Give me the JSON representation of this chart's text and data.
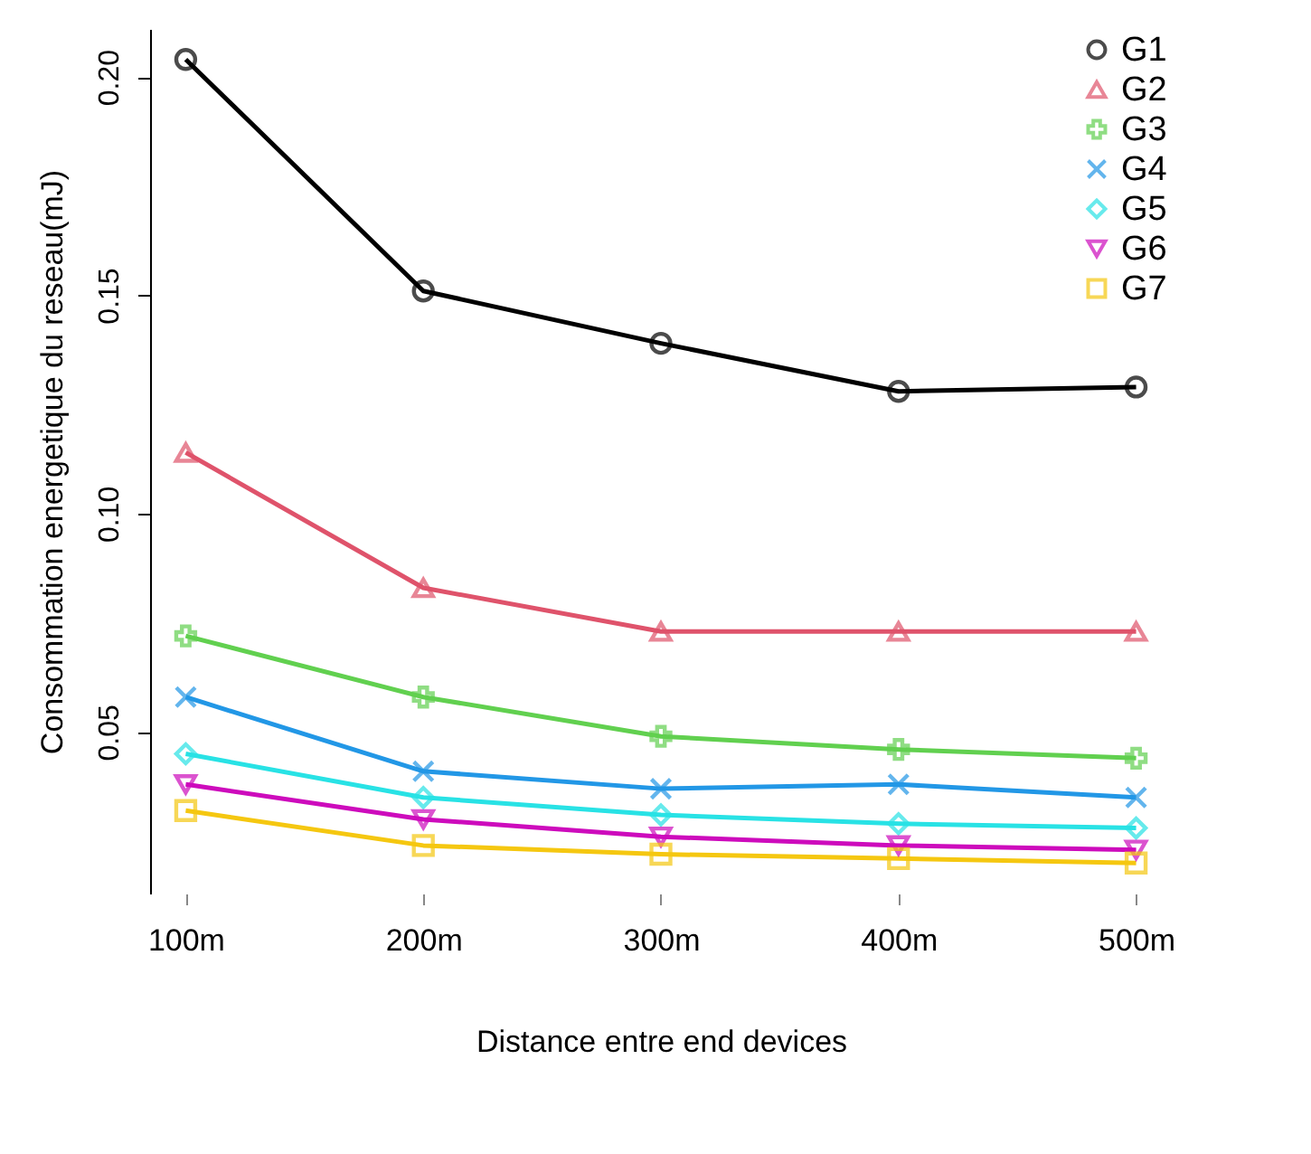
{
  "chart_data": {
    "type": "line",
    "xlabel": "Distance entre end devices",
    "ylabel": "Consommation energetique du reseau(mJ)",
    "categories": [
      "100m",
      "200m",
      "300m",
      "400m",
      "500m"
    ],
    "series": [
      {
        "name": "G1",
        "color": "#000000",
        "marker": "circle",
        "values": [
          0.204,
          0.151,
          0.139,
          0.128,
          0.129
        ]
      },
      {
        "name": "G2",
        "color": "#df536b",
        "marker": "triangle",
        "values": [
          0.114,
          0.083,
          0.073,
          0.073,
          0.073
        ]
      },
      {
        "name": "G3",
        "color": "#61d04f",
        "marker": "cross",
        "values": [
          0.072,
          0.058,
          0.049,
          0.046,
          0.044
        ]
      },
      {
        "name": "G4",
        "color": "#2297e6",
        "marker": "x",
        "values": [
          0.058,
          0.041,
          0.037,
          0.038,
          0.035
        ]
      },
      {
        "name": "G5",
        "color": "#28e2e5",
        "marker": "diamond",
        "values": [
          0.045,
          0.035,
          0.031,
          0.029,
          0.028
        ]
      },
      {
        "name": "G6",
        "color": "#cd0bbc",
        "marker": "triangle-down",
        "values": [
          0.038,
          0.03,
          0.026,
          0.024,
          0.023
        ]
      },
      {
        "name": "G7",
        "color": "#f5c710",
        "marker": "square",
        "values": [
          0.032,
          0.024,
          0.022,
          0.021,
          0.02
        ]
      }
    ],
    "ylim": [
      0.013,
      0.211
    ],
    "yticks": [
      {
        "value": 0.05,
        "label": "0.05"
      },
      {
        "value": 0.1,
        "label": "0.10"
      },
      {
        "value": 0.15,
        "label": "0.15"
      },
      {
        "value": 0.2,
        "label": "0.20"
      }
    ],
    "legend": "top right",
    "grid": false
  }
}
